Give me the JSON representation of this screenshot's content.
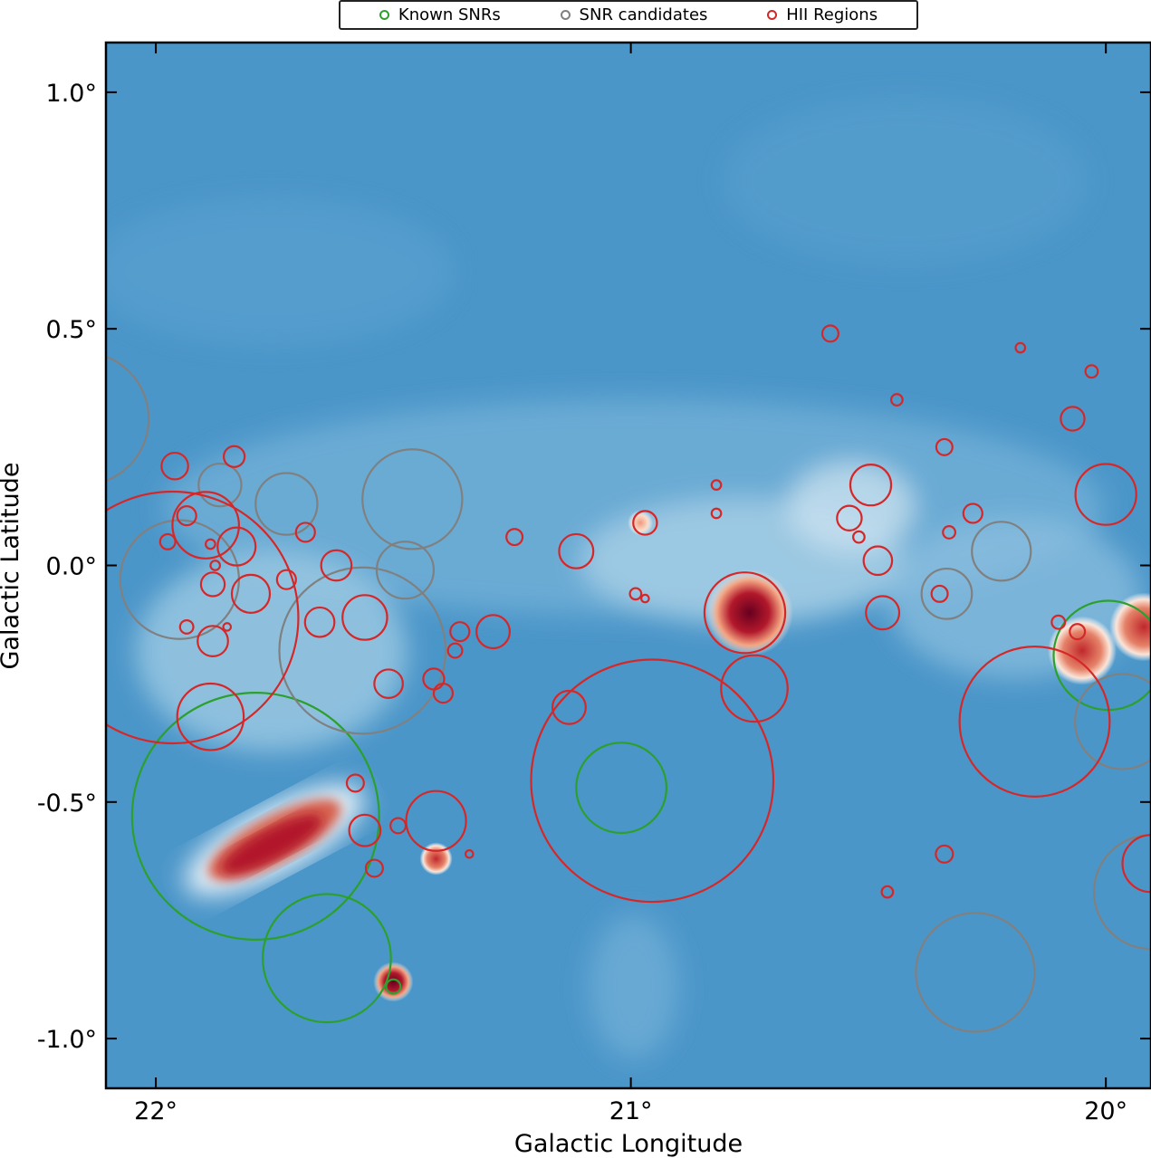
{
  "chart_data": {
    "type": "scatter",
    "title": "",
    "xlabel": "Galactic Longitude",
    "ylabel": "Galactic Latitude",
    "xlim": [
      22.105,
      19.905
    ],
    "ylim": [
      -1.105,
      1.105
    ],
    "x_ticks": [
      22,
      21,
      20
    ],
    "x_tick_labels": [
      "22°",
      "21°",
      "20°"
    ],
    "y_ticks": [
      1.0,
      0.5,
      0.0,
      -0.5,
      -1.0
    ],
    "y_tick_labels": [
      "1.0°",
      "0.5°",
      "0.0°",
      "-0.5°",
      "-1.0°"
    ],
    "x_reversed": true,
    "grid": false,
    "legend_position": "top-center (above axes)",
    "background": "radio continuum intensity map, blue (faint) to white to dark red (bright)",
    "series": [
      {
        "name": "Known SNRs",
        "color": "#2ca02c",
        "marker": "open circle",
        "sources": [
          {
            "l": 21.79,
            "b": -0.53,
            "r": 0.26
          },
          {
            "l": 21.64,
            "b": -0.83,
            "r": 0.135
          },
          {
            "l": 21.5,
            "b": -0.89,
            "r": 0.015
          },
          {
            "l": 21.02,
            "b": -0.47,
            "r": 0.095
          },
          {
            "l": 19.995,
            "b": -0.19,
            "r": 0.115
          }
        ]
      },
      {
        "name": "SNR candidates",
        "color": "#808080",
        "marker": "open circle",
        "sources": [
          {
            "l": 22.155,
            "b": 0.31,
            "r": 0.14
          },
          {
            "l": 21.95,
            "b": -0.03,
            "r": 0.125
          },
          {
            "l": 21.865,
            "b": 0.17,
            "r": 0.045
          },
          {
            "l": 21.725,
            "b": 0.13,
            "r": 0.065
          },
          {
            "l": 21.46,
            "b": 0.14,
            "r": 0.105
          },
          {
            "l": 21.565,
            "b": -0.18,
            "r": 0.175
          },
          {
            "l": 21.475,
            "b": -0.01,
            "r": 0.06
          },
          {
            "l": 20.335,
            "b": -0.06,
            "r": 0.053
          },
          {
            "l": 20.22,
            "b": 0.03,
            "r": 0.062
          },
          {
            "l": 20.275,
            "b": -0.86,
            "r": 0.125
          },
          {
            "l": 19.965,
            "b": -0.33,
            "r": 0.1
          },
          {
            "l": 19.905,
            "b": -0.69,
            "r": 0.12
          }
        ]
      },
      {
        "name": "HII Regions",
        "color": "#d62728",
        "marker": "open circle",
        "sources": [
          {
            "l": 21.965,
            "b": -0.11,
            "r": 0.265
          },
          {
            "l": 21.885,
            "b": -0.32,
            "r": 0.07
          },
          {
            "l": 20.955,
            "b": -0.455,
            "r": 0.255
          },
          {
            "l": 20.76,
            "b": -0.1,
            "r": 0.085
          },
          {
            "l": 20.74,
            "b": -0.26,
            "r": 0.07
          },
          {
            "l": 20.15,
            "b": -0.33,
            "r": 0.158
          },
          {
            "l": 19.905,
            "b": -0.63,
            "r": 0.06
          },
          {
            "l": 20.0,
            "b": 0.15,
            "r": 0.064
          },
          {
            "l": 21.895,
            "b": 0.085,
            "r": 0.07
          },
          {
            "l": 21.83,
            "b": 0.04,
            "r": 0.04
          },
          {
            "l": 21.8,
            "b": -0.06,
            "r": 0.04
          },
          {
            "l": 21.725,
            "b": -0.03,
            "r": 0.02
          },
          {
            "l": 21.62,
            "b": 0.0,
            "r": 0.032
          },
          {
            "l": 21.655,
            "b": -0.12,
            "r": 0.031
          },
          {
            "l": 21.56,
            "b": -0.11,
            "r": 0.047
          },
          {
            "l": 21.51,
            "b": -0.25,
            "r": 0.03
          },
          {
            "l": 21.88,
            "b": -0.16,
            "r": 0.032
          },
          {
            "l": 21.88,
            "b": -0.04,
            "r": 0.025
          },
          {
            "l": 21.835,
            "b": 0.23,
            "r": 0.022
          },
          {
            "l": 21.96,
            "b": 0.21,
            "r": 0.028
          },
          {
            "l": 21.935,
            "b": 0.105,
            "r": 0.02
          },
          {
            "l": 21.975,
            "b": 0.05,
            "r": 0.016
          },
          {
            "l": 21.935,
            "b": -0.13,
            "r": 0.014
          },
          {
            "l": 21.885,
            "b": 0.045,
            "r": 0.01
          },
          {
            "l": 21.875,
            "b": 0.0,
            "r": 0.01
          },
          {
            "l": 21.85,
            "b": -0.13,
            "r": 0.008
          },
          {
            "l": 21.685,
            "b": 0.07,
            "r": 0.02
          },
          {
            "l": 21.395,
            "b": -0.27,
            "r": 0.02
          },
          {
            "l": 21.415,
            "b": -0.24,
            "r": 0.022
          },
          {
            "l": 21.36,
            "b": -0.14,
            "r": 0.02
          },
          {
            "l": 21.37,
            "b": -0.18,
            "r": 0.015
          },
          {
            "l": 21.29,
            "b": -0.14,
            "r": 0.035
          },
          {
            "l": 21.13,
            "b": -0.3,
            "r": 0.035
          },
          {
            "l": 21.245,
            "b": 0.06,
            "r": 0.017
          },
          {
            "l": 21.115,
            "b": 0.03,
            "r": 0.036
          },
          {
            "l": 20.97,
            "b": 0.09,
            "r": 0.025
          },
          {
            "l": 20.99,
            "b": -0.06,
            "r": 0.012
          },
          {
            "l": 20.97,
            "b": -0.07,
            "r": 0.008
          },
          {
            "l": 20.82,
            "b": 0.17,
            "r": 0.01
          },
          {
            "l": 20.82,
            "b": 0.11,
            "r": 0.01
          },
          {
            "l": 20.58,
            "b": 0.49,
            "r": 0.017
          },
          {
            "l": 20.495,
            "b": 0.17,
            "r": 0.043
          },
          {
            "l": 20.54,
            "b": 0.1,
            "r": 0.026
          },
          {
            "l": 20.52,
            "b": 0.06,
            "r": 0.012
          },
          {
            "l": 20.48,
            "b": 0.01,
            "r": 0.03
          },
          {
            "l": 20.47,
            "b": -0.1,
            "r": 0.035
          },
          {
            "l": 20.44,
            "b": 0.35,
            "r": 0.012
          },
          {
            "l": 20.34,
            "b": 0.25,
            "r": 0.017
          },
          {
            "l": 20.33,
            "b": 0.07,
            "r": 0.013
          },
          {
            "l": 20.35,
            "b": -0.06,
            "r": 0.017
          },
          {
            "l": 20.28,
            "b": 0.11,
            "r": 0.02
          },
          {
            "l": 20.18,
            "b": 0.46,
            "r": 0.01
          },
          {
            "l": 20.07,
            "b": 0.31,
            "r": 0.025
          },
          {
            "l": 20.03,
            "b": 0.41,
            "r": 0.013
          },
          {
            "l": 20.34,
            "b": -0.61,
            "r": 0.018
          },
          {
            "l": 20.46,
            "b": -0.69,
            "r": 0.012
          },
          {
            "l": 20.06,
            "b": -0.14,
            "r": 0.016
          },
          {
            "l": 20.1,
            "b": -0.12,
            "r": 0.014
          },
          {
            "l": 21.58,
            "b": -0.46,
            "r": 0.018
          },
          {
            "l": 21.56,
            "b": -0.56,
            "r": 0.033
          },
          {
            "l": 21.49,
            "b": -0.55,
            "r": 0.016
          },
          {
            "l": 21.41,
            "b": -0.54,
            "r": 0.063
          },
          {
            "l": 21.54,
            "b": -0.64,
            "r": 0.018
          },
          {
            "l": 21.34,
            "b": -0.61,
            "r": 0.008
          }
        ]
      }
    ],
    "bright_sources": [
      {
        "l": 21.75,
        "b": -0.58,
        "level": "very bright elongated"
      },
      {
        "l": 20.75,
        "b": -0.1,
        "level": "very bright compact"
      },
      {
        "l": 21.5,
        "b": -0.88,
        "level": "very bright compact"
      },
      {
        "l": 21.41,
        "b": -0.62,
        "level": "moderate"
      },
      {
        "l": 20.05,
        "b": -0.18,
        "level": "bright"
      },
      {
        "l": 19.92,
        "b": -0.13,
        "level": "bright"
      },
      {
        "l": 20.98,
        "b": 0.09,
        "level": "faint"
      }
    ]
  }
}
